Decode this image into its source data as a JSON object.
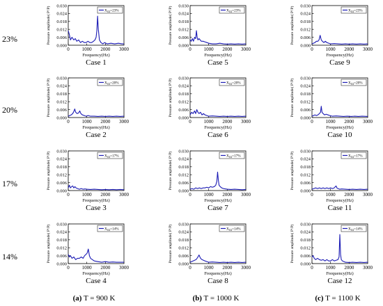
{
  "row_labels": [
    "23%",
    "20%",
    "17%",
    "14%"
  ],
  "column_captions": [
    {
      "letter": "(a)",
      "text": "T = 900 K"
    },
    {
      "letter": "(b)",
      "text": "T = 1000 K"
    },
    {
      "letter": "(c)",
      "text": "T = 1100 K"
    }
  ],
  "colors": {
    "series": "#1a1ab4",
    "axis": "#000000"
  },
  "chart_data": [
    {
      "case": "Case 1",
      "type": "line",
      "title": "",
      "xlabel": "Frequency(Hz)",
      "ylabel": "Pressure amplitude( P'/P)",
      "xlim": [
        0,
        3000
      ],
      "ylim": [
        0,
        0.03
      ],
      "xticks": [
        0,
        1000,
        2000,
        3000
      ],
      "yticks": [
        0,
        0.006,
        0.012,
        0.018,
        0.024,
        0.03
      ],
      "ytick_labels": [
        "0.000",
        "0.006",
        "0.012",
        "0.018",
        "0.024",
        "0.030"
      ],
      "legend": {
        "sub": "O2",
        "value": "=23%"
      },
      "grid": false,
      "x": [
        0,
        60,
        120,
        200,
        300,
        380,
        460,
        560,
        660,
        760,
        860,
        960,
        1060,
        1160,
        1260,
        1360,
        1440,
        1500,
        1540,
        1580,
        1620,
        1680,
        1760,
        1860,
        1960,
        2100,
        2300,
        2500,
        2700,
        2900,
        3000
      ],
      "y": [
        0.011,
        0.008,
        0.004,
        0.006,
        0.004,
        0.005,
        0.003,
        0.004,
        0.002,
        0.003,
        0.002,
        0.002,
        0.003,
        0.002,
        0.002,
        0.003,
        0.004,
        0.006,
        0.011,
        0.022,
        0.012,
        0.004,
        0.002,
        0.001,
        0.002,
        0.001,
        0.0015,
        0.001,
        0.0015,
        0.001,
        0.001
      ]
    },
    {
      "case": "Case 2",
      "type": "line",
      "title": "",
      "xlabel": "Frequency(Hz)",
      "ylabel": "Pressure amplitude( P'/P)",
      "xlim": [
        0,
        3000
      ],
      "ylim": [
        0,
        0.03
      ],
      "xticks": [
        0,
        1000,
        2000,
        3000
      ],
      "yticks": [
        0,
        0.006,
        0.012,
        0.018,
        0.024,
        0.03
      ],
      "ytick_labels": [
        "0.000",
        "0.006",
        "0.012",
        "0.018",
        "0.024",
        "0.030"
      ],
      "legend": {
        "sub": "O2",
        "value": "=20%"
      },
      "grid": false,
      "x": [
        0,
        80,
        160,
        240,
        300,
        350,
        400,
        480,
        560,
        620,
        680,
        760,
        860,
        960,
        1060,
        1200,
        1400,
        1600,
        1800,
        2000,
        2200,
        2400,
        2600,
        2800,
        3000
      ],
      "y": [
        0.001,
        0.0015,
        0.002,
        0.003,
        0.0045,
        0.0065,
        0.004,
        0.003,
        0.0035,
        0.005,
        0.003,
        0.002,
        0.0015,
        0.001,
        0.0015,
        0.001,
        0.001,
        0.0008,
        0.001,
        0.0008,
        0.001,
        0.0008,
        0.001,
        0.0008,
        0.001
      ]
    },
    {
      "case": "Case 3",
      "type": "line",
      "title": "",
      "xlabel": "Frequency(Hz)",
      "ylabel": "Pressure amplitude( P'/P)",
      "xlim": [
        0,
        3000
      ],
      "ylim": [
        0,
        0.03
      ],
      "xticks": [
        0,
        1000,
        2000,
        3000
      ],
      "yticks": [
        0,
        0.006,
        0.012,
        0.018,
        0.024,
        0.03
      ],
      "ytick_labels": [
        "0.000",
        "0.006",
        "0.012",
        "0.018",
        "0.024",
        "0.030"
      ],
      "legend": {
        "sub": "O2",
        "value": "=17%"
      },
      "grid": false,
      "x": [
        0,
        60,
        120,
        180,
        240,
        300,
        360,
        420,
        500,
        600,
        700,
        800,
        900,
        1000,
        1200,
        1400,
        1600,
        1800,
        2000,
        2200,
        2400,
        2600,
        2800,
        3000
      ],
      "y": [
        0.002,
        0.004,
        0.002,
        0.003,
        0.0035,
        0.002,
        0.003,
        0.002,
        0.0015,
        0.001,
        0.0015,
        0.001,
        0.0012,
        0.001,
        0.0008,
        0.001,
        0.0008,
        0.0006,
        0.0008,
        0.0006,
        0.0008,
        0.0006,
        0.0008,
        0.0006
      ]
    },
    {
      "case": "Case 4",
      "type": "line",
      "title": "",
      "xlabel": "Frequency(Hz)",
      "ylabel": "Pressure amplitude( P'/P)",
      "xlim": [
        0,
        3000
      ],
      "ylim": [
        0,
        0.03
      ],
      "xticks": [
        0,
        1000,
        2000,
        3000
      ],
      "yticks": [
        0,
        0.006,
        0.012,
        0.018,
        0.024,
        0.03
      ],
      "ytick_labels": [
        "0.000",
        "0.006",
        "0.012",
        "0.018",
        "0.024",
        "0.030"
      ],
      "legend": {
        "sub": "O2",
        "value": "=14%"
      },
      "grid": false,
      "x": [
        0,
        60,
        120,
        200,
        300,
        400,
        500,
        600,
        700,
        800,
        880,
        960,
        1020,
        1080,
        1140,
        1200,
        1300,
        1400,
        1600,
        1800,
        2000,
        2200,
        2400,
        2600,
        2800,
        3000
      ],
      "y": [
        0.007,
        0.005,
        0.006,
        0.004,
        0.005,
        0.003,
        0.004,
        0.004,
        0.005,
        0.004,
        0.006,
        0.007,
        0.008,
        0.011,
        0.006,
        0.004,
        0.003,
        0.002,
        0.0015,
        0.001,
        0.0015,
        0.001,
        0.0012,
        0.001,
        0.001,
        0.001
      ]
    },
    {
      "case": "Case 5",
      "type": "line",
      "title": "",
      "xlabel": "Frequency(Hz)",
      "ylabel": "Pressure amplitude( P'/P)",
      "xlim": [
        0,
        3000
      ],
      "ylim": [
        0,
        0.03
      ],
      "xticks": [
        0,
        1000,
        2000,
        3000
      ],
      "yticks": [
        0,
        0.006,
        0.012,
        0.018,
        0.024,
        0.03
      ],
      "ytick_labels": [
        "0.000",
        "0.006",
        "0.012",
        "0.018",
        "0.024",
        "0.030"
      ],
      "legend": {
        "sub": "O2",
        "value": "=23%"
      },
      "grid": false,
      "x": [
        0,
        60,
        120,
        180,
        240,
        300,
        340,
        380,
        420,
        480,
        540,
        600,
        700,
        800,
        900,
        1000,
        1200,
        1400,
        1600,
        1800,
        2000,
        2200,
        2400,
        2600,
        2800,
        3000
      ],
      "y": [
        0.004,
        0.003,
        0.005,
        0.003,
        0.006,
        0.005,
        0.011,
        0.006,
        0.004,
        0.005,
        0.004,
        0.003,
        0.003,
        0.0025,
        0.002,
        0.0015,
        0.001,
        0.001,
        0.0015,
        0.001,
        0.0008,
        0.001,
        0.0008,
        0.001,
        0.0008,
        0.001
      ]
    },
    {
      "case": "Case 6",
      "type": "line",
      "title": "",
      "xlabel": "Frequency(Hz)",
      "ylabel": "Pressure amplitude( P'/P)",
      "xlim": [
        0,
        3000
      ],
      "ylim": [
        0,
        0.03
      ],
      "xticks": [
        0,
        1000,
        2000,
        3000
      ],
      "yticks": [
        0,
        0.006,
        0.012,
        0.018,
        0.024,
        0.03
      ],
      "ytick_labels": [
        "0.000",
        "0.006",
        "0.012",
        "0.018",
        "0.024",
        "0.030"
      ],
      "legend": {
        "sub": "O2",
        "value": "=20%"
      },
      "grid": false,
      "x": [
        0,
        80,
        160,
        240,
        300,
        360,
        420,
        480,
        560,
        640,
        720,
        800,
        900,
        1000,
        1200,
        1400,
        1600,
        1800,
        2000,
        2200,
        2400,
        2600,
        2800,
        3000
      ],
      "y": [
        0.002,
        0.004,
        0.003,
        0.005,
        0.003,
        0.006,
        0.004,
        0.003,
        0.004,
        0.002,
        0.003,
        0.002,
        0.0015,
        0.001,
        0.0012,
        0.001,
        0.0008,
        0.001,
        0.0008,
        0.001,
        0.0008,
        0.001,
        0.0008,
        0.001
      ]
    },
    {
      "case": "Case 7",
      "type": "line",
      "title": "",
      "xlabel": "Frequency(Hz)",
      "ylabel": "Pressure amplitude( P'/P)",
      "xlim": [
        0,
        3000
      ],
      "ylim": [
        0,
        0.03
      ],
      "xticks": [
        0,
        1000,
        2000,
        3000
      ],
      "yticks": [
        0,
        0.006,
        0.012,
        0.018,
        0.024,
        0.03
      ],
      "ytick_labels": [
        "0.000",
        "0.006",
        "0.012",
        "0.018",
        "0.024",
        "0.030"
      ],
      "legend": {
        "sub": "O2",
        "value": "=17%"
      },
      "grid": false,
      "x": [
        0,
        100,
        200,
        300,
        400,
        500,
        600,
        700,
        800,
        900,
        1000,
        1100,
        1200,
        1300,
        1380,
        1440,
        1480,
        1520,
        1560,
        1620,
        1700,
        1800,
        2000,
        2200,
        2400,
        2600,
        2800,
        3000
      ],
      "y": [
        0.001,
        0.0015,
        0.001,
        0.002,
        0.0015,
        0.002,
        0.0015,
        0.002,
        0.002,
        0.0025,
        0.002,
        0.003,
        0.0025,
        0.003,
        0.004,
        0.007,
        0.014,
        0.008,
        0.004,
        0.003,
        0.002,
        0.0015,
        0.001,
        0.0008,
        0.001,
        0.0008,
        0.0006,
        0.0008
      ]
    },
    {
      "case": "Case 8",
      "type": "line",
      "title": "",
      "xlabel": "Frequency(Hz)",
      "ylabel": "Pressure amplitude( P'/P)",
      "xlim": [
        0,
        3000
      ],
      "ylim": [
        0,
        0.03
      ],
      "xticks": [
        0,
        1000,
        2000,
        3000
      ],
      "yticks": [
        0,
        0.006,
        0.012,
        0.018,
        0.024,
        0.03
      ],
      "ytick_labels": [
        "0.000",
        "0.006",
        "0.012",
        "0.018",
        "0.024",
        "0.030"
      ],
      "legend": {
        "sub": "O2",
        "value": "=14%"
      },
      "grid": false,
      "x": [
        0,
        80,
        160,
        240,
        320,
        400,
        480,
        560,
        640,
        720,
        800,
        900,
        1000,
        1200,
        1400,
        1600,
        1800,
        2000,
        2200,
        2400,
        2600,
        2800,
        3000
      ],
      "y": [
        0.001,
        0.0015,
        0.002,
        0.0025,
        0.003,
        0.0045,
        0.0065,
        0.004,
        0.003,
        0.0025,
        0.002,
        0.0015,
        0.001,
        0.0012,
        0.001,
        0.0008,
        0.001,
        0.0008,
        0.001,
        0.0008,
        0.001,
        0.0008,
        0.001
      ]
    },
    {
      "case": "Case 9",
      "type": "line",
      "title": "",
      "xlabel": "Frequency(Hz)",
      "ylabel": "Pressure amplitude( P'/P)",
      "xlim": [
        0,
        3000
      ],
      "ylim": [
        0,
        0.03
      ],
      "xticks": [
        0,
        1000,
        2000,
        3000
      ],
      "yticks": [
        0,
        0.006,
        0.012,
        0.018,
        0.024,
        0.03
      ],
      "ytick_labels": [
        "0.000",
        "0.006",
        "0.012",
        "0.018",
        "0.024",
        "0.030"
      ],
      "legend": {
        "sub": "O2",
        "value": "=23%"
      },
      "grid": false,
      "x": [
        0,
        80,
        160,
        240,
        320,
        380,
        440,
        500,
        560,
        640,
        720,
        800,
        900,
        1000,
        1200,
        1400,
        1600,
        1800,
        2000,
        2200,
        2400,
        2600,
        2800,
        3000
      ],
      "y": [
        0.001,
        0.0015,
        0.002,
        0.003,
        0.003,
        0.004,
        0.0075,
        0.004,
        0.003,
        0.002,
        0.003,
        0.002,
        0.0015,
        0.001,
        0.0012,
        0.001,
        0.0008,
        0.001,
        0.0008,
        0.001,
        0.0008,
        0.001,
        0.0008,
        0.001
      ]
    },
    {
      "case": "Case 10",
      "type": "line",
      "title": "",
      "xlabel": "Frequency(Hz)",
      "ylabel": "Pressure amplitude( P'/P)",
      "xlim": [
        0,
        3000
      ],
      "ylim": [
        0,
        0.03
      ],
      "xticks": [
        0,
        1000,
        2000,
        3000
      ],
      "yticks": [
        0,
        0.006,
        0.012,
        0.018,
        0.024,
        0.03
      ],
      "ytick_labels": [
        "0.000",
        "0.006",
        "0.012",
        "0.018",
        "0.024",
        "0.030"
      ],
      "legend": {
        "sub": "O2",
        "value": "=20%"
      },
      "grid": false,
      "x": [
        0,
        80,
        160,
        240,
        320,
        400,
        460,
        500,
        540,
        600,
        680,
        760,
        860,
        960,
        1100,
        1300,
        1500,
        1700,
        1900,
        2100,
        2300,
        2500,
        2700,
        3000
      ],
      "y": [
        0.001,
        0.0015,
        0.002,
        0.0015,
        0.002,
        0.003,
        0.004,
        0.0085,
        0.004,
        0.003,
        0.002,
        0.0025,
        0.002,
        0.0015,
        0.001,
        0.0012,
        0.001,
        0.0008,
        0.001,
        0.0008,
        0.001,
        0.0008,
        0.001,
        0.0008
      ]
    },
    {
      "case": "Case 11",
      "type": "line",
      "title": "",
      "xlabel": "Frequency(Hz)",
      "ylabel": "Pressure amplitude( P'/P)",
      "xlim": [
        0,
        3000
      ],
      "ylim": [
        0,
        0.03
      ],
      "xticks": [
        0,
        1000,
        2000,
        3000
      ],
      "yticks": [
        0,
        0.006,
        0.012,
        0.018,
        0.024,
        0.03
      ],
      "ytick_labels": [
        "0.000",
        "0.006",
        "0.012",
        "0.018",
        "0.024",
        "0.030"
      ],
      "legend": {
        "sub": "O2",
        "value": "=17%"
      },
      "grid": false,
      "x": [
        0,
        100,
        200,
        300,
        400,
        500,
        600,
        700,
        800,
        900,
        1000,
        1100,
        1200,
        1260,
        1300,
        1340,
        1400,
        1500,
        1600,
        1800,
        2000,
        2200,
        2400,
        2600,
        2800,
        3000
      ],
      "y": [
        0.001,
        0.0015,
        0.002,
        0.0015,
        0.002,
        0.0015,
        0.002,
        0.0015,
        0.002,
        0.0015,
        0.002,
        0.0015,
        0.002,
        0.003,
        0.0035,
        0.002,
        0.0015,
        0.001,
        0.0012,
        0.001,
        0.0008,
        0.001,
        0.0008,
        0.001,
        0.0008,
        0.001
      ]
    },
    {
      "case": "Case 12",
      "type": "line",
      "title": "",
      "xlabel": "Frequency(Hz)",
      "ylabel": "Pressure amplitude( P'/P)",
      "xlim": [
        0,
        3000
      ],
      "ylim": [
        0,
        0.03
      ],
      "xticks": [
        0,
        1000,
        2000,
        3000
      ],
      "yticks": [
        0,
        0.006,
        0.012,
        0.018,
        0.024,
        0.03
      ],
      "ytick_labels": [
        "0.000",
        "0.006",
        "0.012",
        "0.018",
        "0.024",
        "0.030"
      ],
      "legend": {
        "sub": "O2",
        "value": "=14%"
      },
      "grid": false,
      "x": [
        0,
        60,
        120,
        200,
        300,
        400,
        500,
        600,
        700,
        800,
        900,
        1000,
        1100,
        1200,
        1300,
        1400,
        1460,
        1500,
        1540,
        1580,
        1640,
        1720,
        1800,
        2000,
        2200,
        2400,
        2600,
        2800,
        3000
      ],
      "y": [
        0.005,
        0.006,
        0.004,
        0.003,
        0.004,
        0.003,
        0.0025,
        0.003,
        0.002,
        0.003,
        0.002,
        0.002,
        0.003,
        0.002,
        0.0025,
        0.003,
        0.005,
        0.022,
        0.007,
        0.003,
        0.002,
        0.0015,
        0.001,
        0.0008,
        0.001,
        0.0008,
        0.001,
        0.0008,
        0.001
      ]
    }
  ]
}
